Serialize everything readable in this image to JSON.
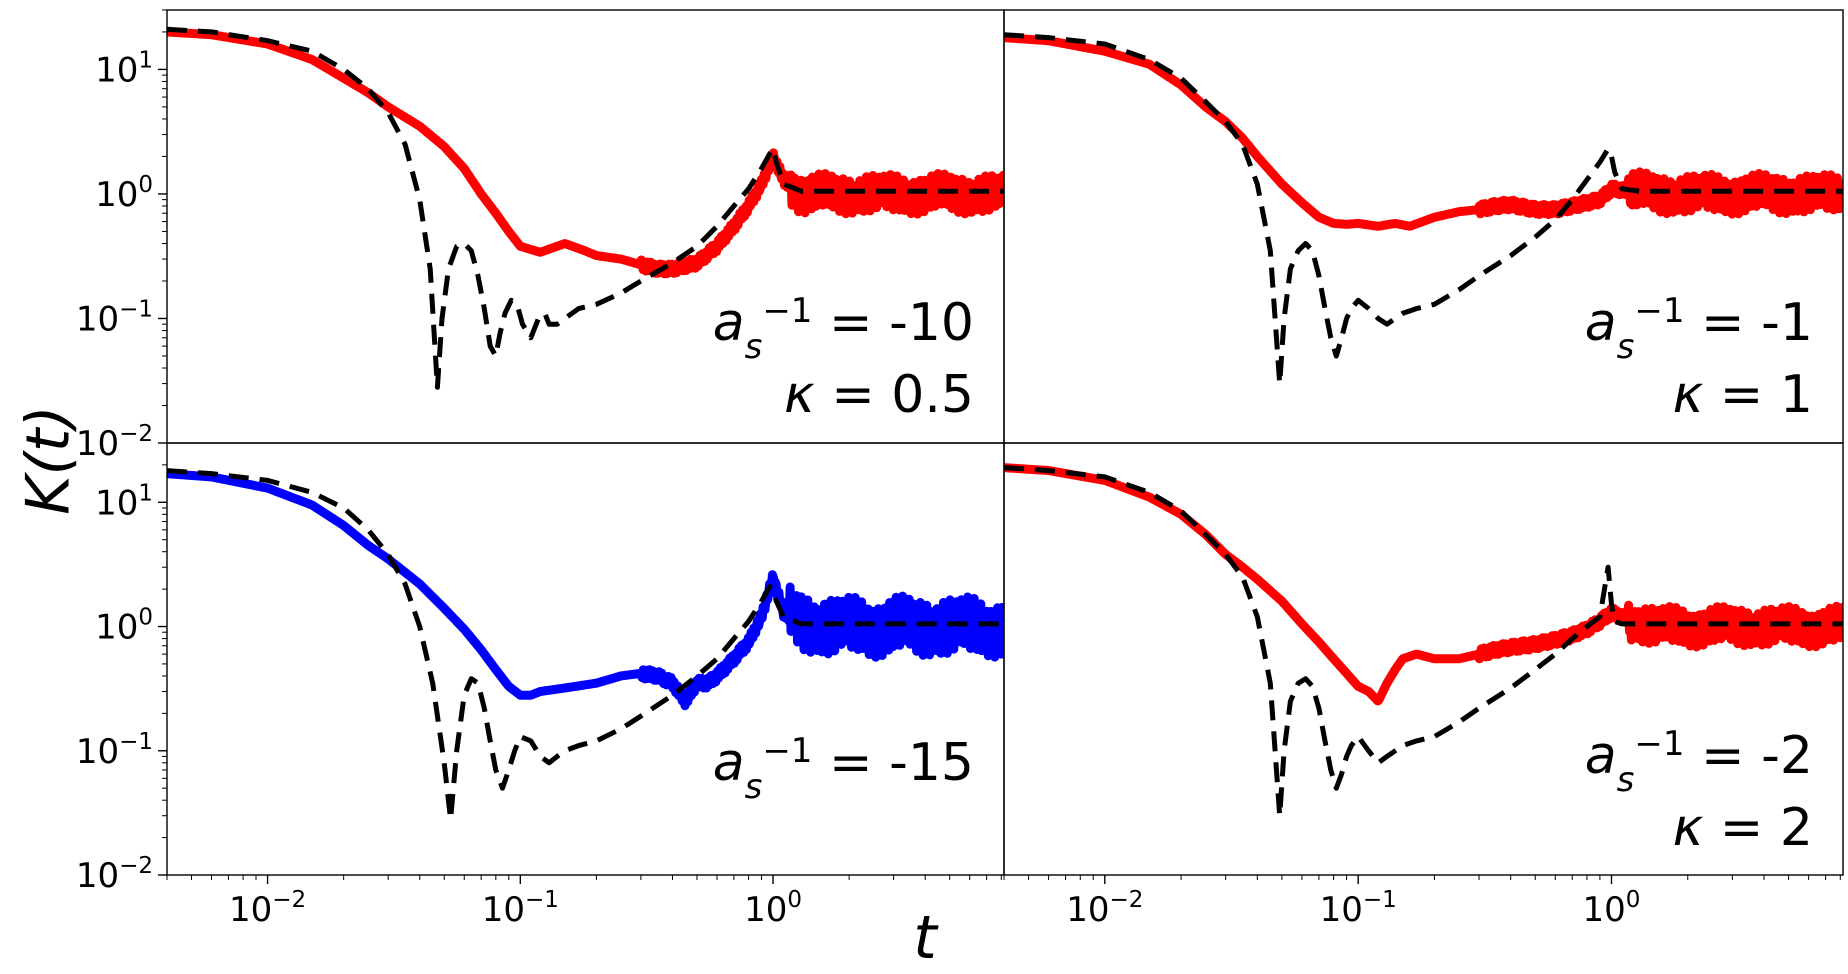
{
  "ylabel": "K(t)",
  "xlabel": "t",
  "x_ticks": [
    {
      "value": 0.01,
      "base": "10",
      "exp": "−2"
    },
    {
      "value": 0.1,
      "base": "10",
      "exp": "−1"
    },
    {
      "value": 1,
      "base": "10",
      "exp": "0"
    }
  ],
  "y_ticks": [
    {
      "value": 10,
      "base": "10",
      "exp": "1"
    },
    {
      "value": 1,
      "base": "10",
      "exp": "0"
    },
    {
      "value": 0.1,
      "base": "10",
      "exp": "−1"
    },
    {
      "value": 0.01,
      "base": "10",
      "exp": "−2"
    }
  ],
  "colors": {
    "red": "#ff0000",
    "blue": "#0000ff",
    "black": "#000000"
  },
  "chart_data": [
    {
      "type": "line",
      "panel": "top-left",
      "x_scale": "log",
      "y_scale": "log",
      "xlim": [
        0.004,
        8.2
      ],
      "ylim": [
        0.01,
        30
      ],
      "grid": false,
      "annotation": {
        "a_label": "a",
        "a_sub": "s",
        "a_sup": "−1",
        "a_value": "= -10",
        "kappa_label": "κ",
        "kappa_value": "= 0.5"
      },
      "series": [
        {
          "color": "#ff0000",
          "style": "solid",
          "noise": 0.3,
          "x": [
            0.004,
            0.006,
            0.01,
            0.015,
            0.02,
            0.025,
            0.03,
            0.04,
            0.05,
            0.06,
            0.07,
            0.08,
            0.09,
            0.1,
            0.12,
            0.15,
            0.18,
            0.2,
            0.25,
            0.3,
            0.35,
            0.4,
            0.5,
            0.6,
            0.7,
            0.8,
            0.9,
            1.0,
            1.1,
            1.3,
            1.6,
            2,
            3,
            4,
            5,
            6,
            8.2
          ],
          "y": [
            20,
            19,
            16,
            12,
            8.5,
            6.5,
            5.0,
            3.5,
            2.4,
            1.6,
            1.0,
            0.7,
            0.5,
            0.38,
            0.34,
            0.4,
            0.35,
            0.32,
            0.3,
            0.27,
            0.25,
            0.25,
            0.28,
            0.38,
            0.55,
            0.8,
            1.2,
            2.0,
            1.3,
            1.0,
            1.0,
            1.0,
            1.0,
            1.0,
            1.0,
            1.0,
            1.0
          ]
        },
        {
          "color": "#000000",
          "style": "dashed",
          "noise": 0,
          "x": [
            0.004,
            0.006,
            0.01,
            0.015,
            0.02,
            0.025,
            0.03,
            0.035,
            0.04,
            0.044,
            0.047,
            0.049,
            0.052,
            0.056,
            0.06,
            0.064,
            0.068,
            0.072,
            0.076,
            0.08,
            0.083,
            0.087,
            0.092,
            0.097,
            0.102,
            0.11,
            0.118,
            0.125,
            0.13,
            0.14,
            0.15,
            0.17,
            0.2,
            0.25,
            0.3,
            0.4,
            0.5,
            0.6,
            0.7,
            0.8,
            0.9,
            0.97,
            1.0,
            1.03,
            1.1,
            1.3,
            1.6,
            2,
            3,
            5,
            8.2
          ],
          "y": [
            21,
            20,
            17,
            14,
            10,
            7,
            4.5,
            2.5,
            0.9,
            0.25,
            0.028,
            0.1,
            0.25,
            0.38,
            0.4,
            0.35,
            0.22,
            0.12,
            0.06,
            0.05,
            0.075,
            0.11,
            0.14,
            0.13,
            0.09,
            0.07,
            0.1,
            0.11,
            0.09,
            0.09,
            0.1,
            0.12,
            0.13,
            0.16,
            0.2,
            0.28,
            0.38,
            0.55,
            0.8,
            1.1,
            1.6,
            2.1,
            2.3,
            1.8,
            1.2,
            1.05,
            1.05,
            1.05,
            1.05,
            1.05,
            1.05
          ]
        }
      ]
    },
    {
      "type": "line",
      "panel": "top-right",
      "x_scale": "log",
      "y_scale": "log",
      "xlim": [
        0.004,
        8.2
      ],
      "ylim": [
        0.01,
        30
      ],
      "grid": false,
      "annotation": {
        "a_label": "a",
        "a_sub": "s",
        "a_sup": "−1",
        "a_value": "= -1",
        "kappa_label": "κ",
        "kappa_value": "= 1"
      },
      "series": [
        {
          "color": "#ff0000",
          "style": "solid",
          "noise": 0.3,
          "x": [
            0.004,
            0.006,
            0.01,
            0.015,
            0.02,
            0.025,
            0.03,
            0.035,
            0.04,
            0.05,
            0.06,
            0.07,
            0.08,
            0.09,
            0.1,
            0.12,
            0.14,
            0.16,
            0.2,
            0.25,
            0.3,
            0.35,
            0.4,
            0.5,
            0.6,
            0.7,
            0.8,
            0.9,
            1.0,
            1.2,
            1.5,
            2,
            3,
            5,
            8.2
          ],
          "y": [
            18,
            17,
            14,
            11,
            7.5,
            5,
            3.8,
            2.8,
            2.0,
            1.2,
            0.85,
            0.65,
            0.58,
            0.57,
            0.58,
            0.55,
            0.58,
            0.55,
            0.65,
            0.72,
            0.75,
            0.8,
            0.82,
            0.75,
            0.75,
            0.8,
            0.85,
            0.9,
            1.1,
            1.05,
            1.0,
            1.0,
            1.0,
            1.0,
            1.0
          ]
        },
        {
          "color": "#000000",
          "style": "dashed",
          "noise": 0,
          "x": [
            0.004,
            0.006,
            0.01,
            0.015,
            0.02,
            0.025,
            0.03,
            0.035,
            0.04,
            0.045,
            0.049,
            0.051,
            0.054,
            0.058,
            0.062,
            0.066,
            0.07,
            0.074,
            0.078,
            0.082,
            0.086,
            0.09,
            0.094,
            0.1,
            0.11,
            0.12,
            0.13,
            0.14,
            0.15,
            0.17,
            0.2,
            0.25,
            0.3,
            0.4,
            0.5,
            0.6,
            0.7,
            0.8,
            0.9,
            0.97,
            1.0,
            1.03,
            1.1,
            1.3,
            1.6,
            2,
            3,
            5,
            8.2
          ],
          "y": [
            19,
            18,
            16,
            12,
            8.5,
            5.5,
            3.8,
            2.5,
            1.2,
            0.35,
            0.03,
            0.1,
            0.25,
            0.35,
            0.4,
            0.35,
            0.22,
            0.12,
            0.07,
            0.05,
            0.07,
            0.1,
            0.12,
            0.14,
            0.12,
            0.1,
            0.09,
            0.1,
            0.11,
            0.12,
            0.13,
            0.17,
            0.22,
            0.32,
            0.45,
            0.62,
            0.9,
            1.3,
            1.8,
            2.3,
            2.0,
            1.5,
            1.1,
            1.05,
            1.05,
            1.05,
            1.05,
            1.05,
            1.05
          ]
        }
      ]
    },
    {
      "type": "line",
      "panel": "bottom-left",
      "x_scale": "log",
      "y_scale": "log",
      "xlim": [
        0.004,
        8.2
      ],
      "ylim": [
        0.01,
        30
      ],
      "grid": false,
      "annotation": {
        "a_label": "a",
        "a_sub": "s",
        "a_sup": "−1",
        "a_value": "= -15",
        "kappa_label": "",
        "kappa_value": ""
      },
      "series": [
        {
          "color": "#0000ff",
          "style": "solid",
          "noise": 0.45,
          "x": [
            0.004,
            0.006,
            0.01,
            0.015,
            0.02,
            0.025,
            0.03,
            0.04,
            0.05,
            0.06,
            0.07,
            0.08,
            0.09,
            0.1,
            0.11,
            0.12,
            0.15,
            0.2,
            0.25,
            0.3,
            0.35,
            0.4,
            0.45,
            0.5,
            0.55,
            0.6,
            0.7,
            0.8,
            0.9,
            1.0,
            1.1,
            1.3,
            1.6,
            2,
            3,
            5,
            8.2
          ],
          "y": [
            17,
            16,
            13,
            9.5,
            6.5,
            4.5,
            3.5,
            2.2,
            1.4,
            0.95,
            0.65,
            0.45,
            0.33,
            0.28,
            0.28,
            0.3,
            0.32,
            0.35,
            0.4,
            0.42,
            0.4,
            0.35,
            0.25,
            0.35,
            0.35,
            0.4,
            0.55,
            0.75,
            1.2,
            2.5,
            1.3,
            1.1,
            1.0,
            1.0,
            1.0,
            1.0,
            1.0
          ]
        },
        {
          "color": "#000000",
          "style": "dashed",
          "noise": 0,
          "x": [
            0.004,
            0.006,
            0.01,
            0.015,
            0.02,
            0.025,
            0.03,
            0.035,
            0.04,
            0.045,
            0.05,
            0.053,
            0.056,
            0.06,
            0.064,
            0.068,
            0.072,
            0.076,
            0.08,
            0.085,
            0.09,
            0.095,
            0.1,
            0.11,
            0.12,
            0.13,
            0.14,
            0.15,
            0.17,
            0.2,
            0.25,
            0.3,
            0.4,
            0.5,
            0.6,
            0.7,
            0.8,
            0.9,
            0.97,
            1.0,
            1.03,
            1.1,
            1.3,
            1.6,
            2,
            3,
            5,
            8.2
          ],
          "y": [
            18,
            17,
            15,
            12,
            9,
            6,
            3.8,
            2.2,
            1.0,
            0.35,
            0.08,
            0.028,
            0.1,
            0.28,
            0.38,
            0.35,
            0.22,
            0.12,
            0.07,
            0.05,
            0.07,
            0.1,
            0.13,
            0.12,
            0.09,
            0.08,
            0.09,
            0.1,
            0.11,
            0.12,
            0.15,
            0.19,
            0.28,
            0.4,
            0.55,
            0.8,
            1.1,
            1.6,
            2.1,
            2.0,
            1.6,
            1.2,
            1.05,
            1.05,
            1.05,
            1.05,
            1.05,
            1.05
          ]
        }
      ]
    },
    {
      "type": "line",
      "panel": "bottom-right",
      "x_scale": "log",
      "y_scale": "log",
      "xlim": [
        0.004,
        8.2
      ],
      "ylim": [
        0.01,
        30
      ],
      "grid": false,
      "annotation": {
        "a_label": "a",
        "a_sub": "s",
        "a_sup": "−1",
        "a_value": "= -2",
        "kappa_label": "κ",
        "kappa_value": "= 2"
      },
      "series": [
        {
          "color": "#ff0000",
          "style": "solid",
          "noise": 0.3,
          "x": [
            0.004,
            0.006,
            0.01,
            0.015,
            0.02,
            0.025,
            0.03,
            0.035,
            0.04,
            0.05,
            0.06,
            0.07,
            0.08,
            0.09,
            0.1,
            0.11,
            0.12,
            0.13,
            0.14,
            0.15,
            0.17,
            0.2,
            0.25,
            0.3,
            0.35,
            0.4,
            0.5,
            0.6,
            0.7,
            0.8,
            0.9,
            1.0,
            1.2,
            1.5,
            2,
            3,
            5,
            8.2
          ],
          "y": [
            19,
            18,
            15,
            11,
            8,
            5.5,
            3.8,
            3.0,
            2.4,
            1.6,
            1.05,
            0.75,
            0.55,
            0.42,
            0.33,
            0.3,
            0.25,
            0.35,
            0.45,
            0.55,
            0.6,
            0.55,
            0.55,
            0.6,
            0.65,
            0.68,
            0.72,
            0.78,
            0.85,
            0.95,
            1.1,
            1.3,
            1.1,
            1.0,
            1.0,
            1.0,
            1.0,
            1.0
          ]
        },
        {
          "color": "#000000",
          "style": "dashed",
          "noise": 0,
          "x": [
            0.004,
            0.006,
            0.01,
            0.015,
            0.02,
            0.025,
            0.03,
            0.035,
            0.04,
            0.045,
            0.049,
            0.051,
            0.054,
            0.058,
            0.062,
            0.066,
            0.07,
            0.074,
            0.078,
            0.082,
            0.086,
            0.09,
            0.094,
            0.1,
            0.11,
            0.12,
            0.13,
            0.14,
            0.15,
            0.17,
            0.2,
            0.25,
            0.3,
            0.4,
            0.5,
            0.6,
            0.7,
            0.8,
            0.9,
            0.97,
            1.0,
            1.03,
            1.1,
            1.3,
            1.6,
            2,
            3,
            5,
            8.2
          ],
          "y": [
            19,
            18,
            16,
            12,
            8.5,
            5.5,
            3.8,
            2.5,
            1.2,
            0.35,
            0.03,
            0.1,
            0.25,
            0.35,
            0.38,
            0.33,
            0.22,
            0.12,
            0.07,
            0.05,
            0.065,
            0.09,
            0.11,
            0.13,
            0.1,
            0.08,
            0.09,
            0.1,
            0.11,
            0.12,
            0.13,
            0.17,
            0.22,
            0.32,
            0.45,
            0.6,
            0.8,
            1.0,
            1.2,
            3.0,
            1.5,
            1.1,
            1.05,
            1.05,
            1.05,
            1.05,
            1.05,
            1.05,
            1.05
          ]
        }
      ]
    }
  ]
}
